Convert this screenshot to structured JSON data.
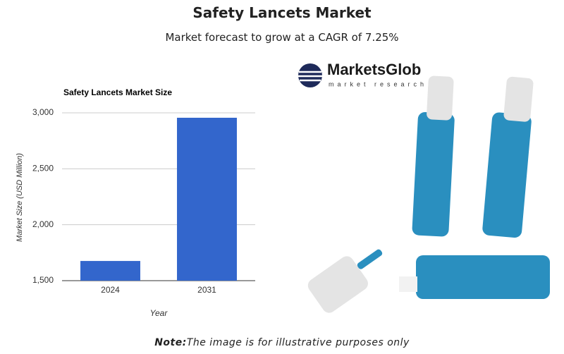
{
  "header": {
    "title": "Safety Lancets Market",
    "subtitle": "Market forecast to grow at a CAGR of 7.25%"
  },
  "logo": {
    "name": "MarketsGlob",
    "tagline": "market research"
  },
  "note": {
    "label": "Note:",
    "text": "The image is for illustrative purposes only"
  },
  "chart_data": {
    "type": "bar",
    "title": "Safety Lancets Market Size",
    "x_label": "Year",
    "y_label": "Market Size (USD Million)",
    "categories": [
      "2024",
      "2031"
    ],
    "values": [
      1676,
      2956
    ],
    "color": "#3366cc",
    "ylim": [
      1500,
      3000
    ],
    "yticks": [
      {
        "value": 1500,
        "label": "1,500"
      },
      {
        "value": 2000,
        "label": "2,000"
      },
      {
        "value": 2500,
        "label": "2,500"
      },
      {
        "value": 3000,
        "label": "3,000"
      }
    ],
    "grid": true
  }
}
